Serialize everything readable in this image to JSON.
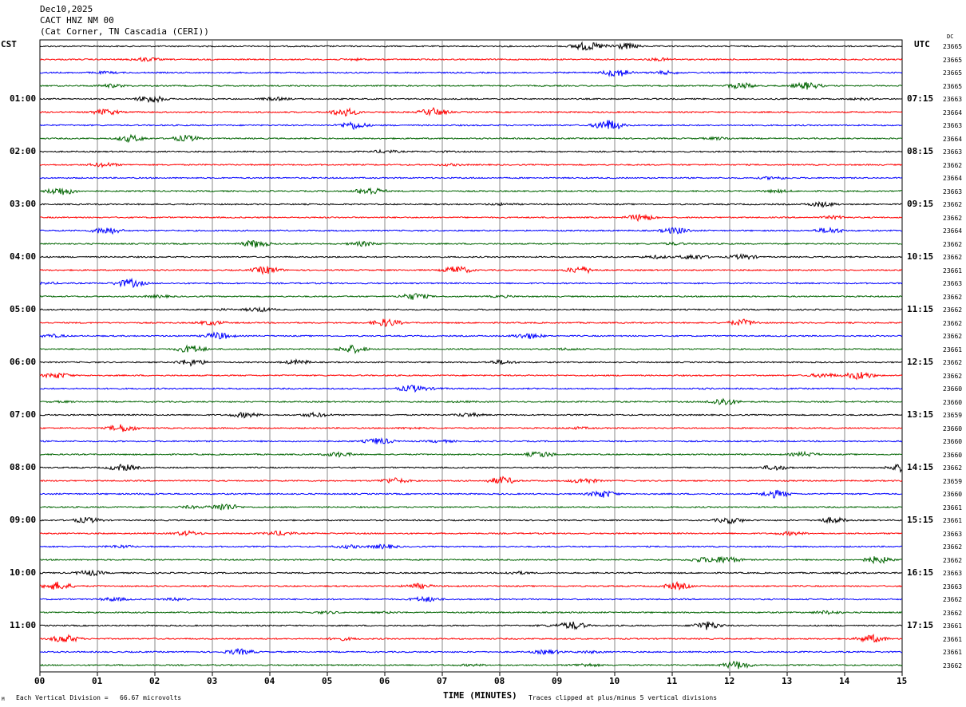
{
  "header": {
    "date": "Dec10,2025",
    "station": "CACT HNZ NM 00",
    "location": "(Cat Corner, TN Cascadia (CERI))"
  },
  "left_tz": "CST",
  "right_tz": "UTC",
  "dc_header": "DC",
  "chart_data": {
    "type": "line",
    "title": "CACT HNZ NM 00",
    "xlabel": "TIME (MINUTES)",
    "xlim": [
      0,
      15
    ],
    "x_ticks": [
      "00",
      "01",
      "02",
      "03",
      "04",
      "05",
      "06",
      "07",
      "08",
      "09",
      "10",
      "11",
      "12",
      "13",
      "14",
      "15"
    ],
    "trace_minutes": 15,
    "trace_colors": [
      "#000000",
      "#ff0000",
      "#0000ff",
      "#006400"
    ],
    "left_hour_labels": [
      "01:00",
      "02:00",
      "03:00",
      "04:00",
      "05:00",
      "06:00",
      "07:00",
      "08:00",
      "09:00",
      "10:00",
      "11:00"
    ],
    "right_hour_labels": [
      "07:15",
      "08:15",
      "09:15",
      "10:15",
      "11:15",
      "12:15",
      "13:15",
      "14:15",
      "15:15",
      "16:15",
      "17:15"
    ],
    "dc_offsets": [
      "23665",
      "23665",
      "23665",
      "23665",
      "23663",
      "23664",
      "23663",
      "23664",
      "23663",
      "23662",
      "23664",
      "23663",
      "23662",
      "23662",
      "23664",
      "23662",
      "23662",
      "23661",
      "23663",
      "23662",
      "23662",
      "23662",
      "23662",
      "23661",
      "23662",
      "23662",
      "23660",
      "23660",
      "23659",
      "23660",
      "23660",
      "23660",
      "23662",
      "23659",
      "23660",
      "23661",
      "23661",
      "23663",
      "23662",
      "23662",
      "23663",
      "23663",
      "23662",
      "23662",
      "23661",
      "23661",
      "23661",
      "23662"
    ]
  },
  "footer": {
    "scale_note": "Each Vertical Division =   66.67 microvolts",
    "clip_note": "Traces clipped at plus/minus 5 vertical divisions",
    "corner_mark": "M"
  }
}
